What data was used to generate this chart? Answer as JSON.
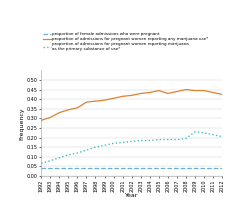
{
  "years": [
    1992,
    1993,
    1994,
    1995,
    1996,
    1997,
    1998,
    1999,
    2000,
    2001,
    2002,
    2003,
    2004,
    2005,
    2006,
    2007,
    2008,
    2009,
    2010,
    2011,
    2012
  ],
  "line1": [
    0.04,
    0.04,
    0.04,
    0.04,
    0.04,
    0.04,
    0.04,
    0.04,
    0.04,
    0.04,
    0.04,
    0.04,
    0.04,
    0.04,
    0.04,
    0.04,
    0.04,
    0.04,
    0.04,
    0.04,
    0.04
  ],
  "line2": [
    0.29,
    0.305,
    0.33,
    0.345,
    0.355,
    0.385,
    0.39,
    0.395,
    0.405,
    0.415,
    0.42,
    0.43,
    0.435,
    0.445,
    0.43,
    0.44,
    0.45,
    0.445,
    0.445,
    0.435,
    0.425
  ],
  "line3": [
    0.065,
    0.08,
    0.095,
    0.11,
    0.12,
    0.135,
    0.15,
    0.16,
    0.17,
    0.175,
    0.18,
    0.185,
    0.185,
    0.19,
    0.19,
    0.19,
    0.195,
    0.23,
    0.225,
    0.215,
    0.205
  ],
  "color1": "#6baed6",
  "color2": "#e08030",
  "color3": "#3fbfbf",
  "ylabel": "Frequency",
  "xlabel": "Year",
  "ylim": [
    0,
    0.55
  ],
  "yticks": [
    0,
    0.05,
    0.1,
    0.15,
    0.2,
    0.25,
    0.3,
    0.35,
    0.4,
    0.45,
    0.5
  ],
  "legend1": "proportion of female admissions who were pregnant",
  "legend2": "proportion of admissions for pregnant women reporting any marijuana use*",
  "legend3": "proportion of admissions for pregnant women reporting marijuana\nas the primary substance of use*",
  "bg_color": "#ffffff"
}
